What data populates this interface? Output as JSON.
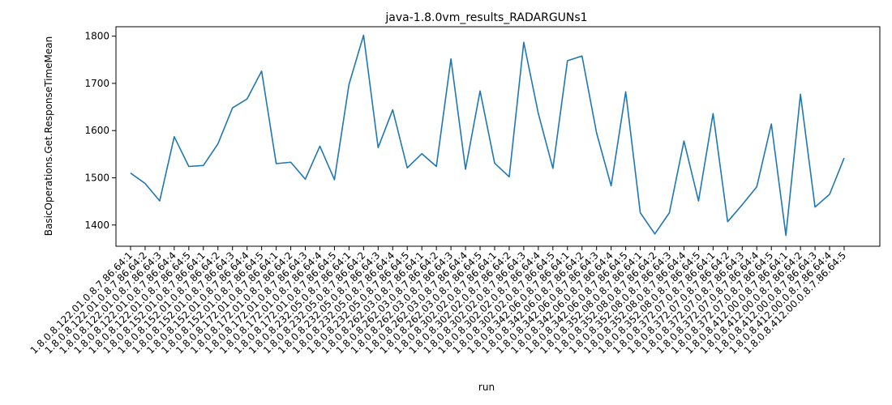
{
  "chart_data": {
    "type": "line",
    "title": "java-1.8.0vm_results_RADARGUNs1",
    "xlabel": "run",
    "ylabel": "BasicOperations.Get.ResponseTimeMean",
    "ylim": [
      1355,
      1820
    ],
    "yticks": [
      1400,
      1500,
      1600,
      1700,
      1800
    ],
    "grid": false,
    "legend": "none",
    "line_color": "#1f77b4",
    "categories": [
      "1.8.0.8.122.01.0.8.7.86.64:1",
      "1.8.0.8.122.01.0.8.7.86.64:2",
      "1.8.0.8.122.01.0.8.7.86.64:3",
      "1.8.0.8.122.01.0.8.7.86.64:4",
      "1.8.0.8.122.01.0.8.7.86.64:5",
      "1.8.0.8.152.01.0.8.7.86.64:1",
      "1.8.0.8.152.01.0.8.7.86.64:2",
      "1.8.0.8.152.01.0.8.7.86.64:3",
      "1.8.0.8.152.01.0.8.7.86.64:4",
      "1.8.0.8.152.01.0.8.7.86.64:5",
      "1.8.0.8.172.01.0.8.7.86.64:1",
      "1.8.0.8.172.01.0.8.7.86.64:2",
      "1.8.0.8.172.01.0.8.7.86.64:3",
      "1.8.0.8.172.01.0.8.7.86.64:4",
      "1.8.0.8.172.01.0.8.7.86.64:5",
      "1.8.0.8.232.05.0.8.7.86.64:1",
      "1.8.0.8.232.05.0.8.7.86.64:2",
      "1.8.0.8.232.05.0.8.7.86.64:3",
      "1.8.0.8.232.05.0.8.7.86.64:4",
      "1.8.0.8.232.05.0.8.7.86.64:5",
      "1.8.0.8.262.03.0.8.7.86.64:1",
      "1.8.0.8.262.03.0.8.7.86.64:2",
      "1.8.0.8.262.03.0.8.7.86.64:3",
      "1.8.0.8.262.03.0.8.7.86.64:4",
      "1.8.0.8.262.03.0.8.7.86.64:5",
      "1.8.0.8.302.02.0.8.7.86.64:1",
      "1.8.0.8.302.02.0.8.7.86.64:2",
      "1.8.0.8.302.02.0.8.7.86.64:3",
      "1.8.0.8.302.02.0.8.7.86.64:4",
      "1.8.0.8.302.02.0.8.7.86.64:5",
      "1.8.0.8.342.06.0.8.7.86.64:1",
      "1.8.0.8.342.06.0.8.7.86.64:2",
      "1.8.0.8.342.06.0.8.7.86.64:3",
      "1.8.0.8.342.06.0.8.7.86.64:4",
      "1.8.0.8.342.06.0.8.7.86.64:5",
      "1.8.0.8.352.08.0.8.7.86.64:1",
      "1.8.0.8.352.08.0.8.7.86.64:2",
      "1.8.0.8.352.08.0.8.7.86.64:3",
      "1.8.0.8.352.08.0.8.7.86.64:4",
      "1.8.0.8.352.08.0.8.7.86.64:5",
      "1.8.0.8.372.07.0.8.7.86.64:1",
      "1.8.0.8.372.07.0.8.7.86.64:2",
      "1.8.0.8.372.07.0.8.7.86.64:3",
      "1.8.0.8.372.07.0.8.7.86.64:4",
      "1.8.0.8.372.07.0.8.7.86.64:5",
      "1.8.0.8.412.00.0.8.7.86.64:1",
      "1.8.0.8.412.00.0.8.7.86.64:2",
      "1.8.0.8.412.00.0.8.7.86.64:3",
      "1.8.0.8.412.00.0.8.7.86.64:4",
      "1.8.0.8.412.00.0.8.7.86.64:5"
    ],
    "values": [
      1510,
      1488,
      1451,
      1587,
      1524,
      1526,
      1572,
      1648,
      1667,
      1726,
      1530,
      1533,
      1497,
      1567,
      1496,
      1698,
      1802,
      1564,
      1644,
      1521,
      1551,
      1524,
      1752,
      1518,
      1684,
      1531,
      1502,
      1787,
      1636,
      1520,
      1748,
      1758,
      1595,
      1483,
      1682,
      1426,
      1381,
      1426,
      1578,
      1451,
      1636,
      1407,
      1443,
      1481,
      1614,
      1378,
      1677,
      1438,
      1465,
      1542
    ]
  }
}
